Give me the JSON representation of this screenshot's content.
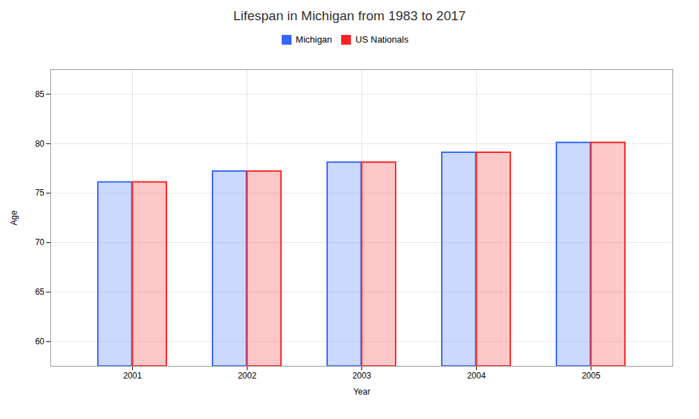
{
  "chart_data": {
    "type": "bar",
    "title": "Lifespan in Michigan from 1983 to 2017",
    "xlabel": "Year",
    "ylabel": "Age",
    "categories": [
      "2001",
      "2002",
      "2003",
      "2004",
      "2005"
    ],
    "series": [
      {
        "name": "Michigan",
        "color": "#3366FF",
        "values": [
          76.1,
          77.2,
          78.1,
          79.1,
          80.1
        ]
      },
      {
        "name": "US Nationals",
        "color": "#FF2222",
        "values": [
          76.1,
          77.2,
          78.1,
          79.1,
          80.1
        ]
      }
    ],
    "ylim": [
      57.5,
      87.5
    ],
    "yticks": [
      60,
      65,
      70,
      75,
      80,
      85
    ],
    "grid": true,
    "legend": "top"
  }
}
